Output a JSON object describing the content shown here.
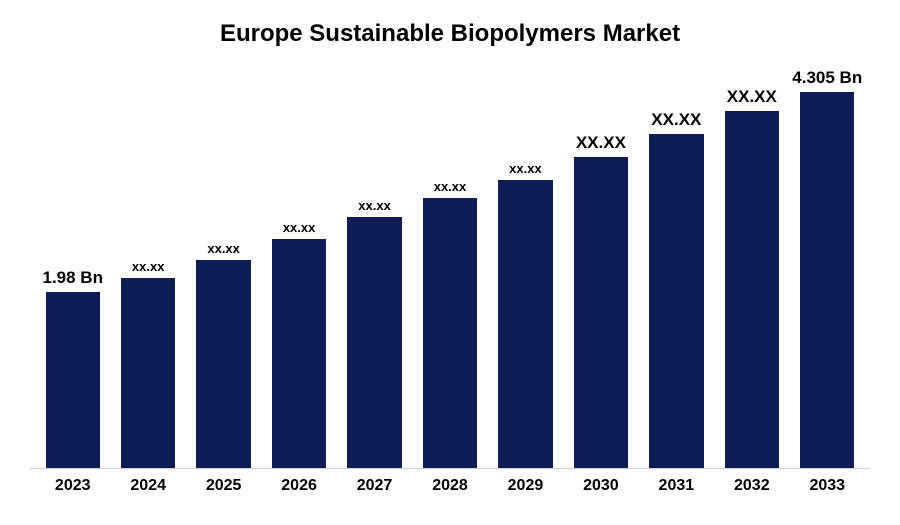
{
  "chart": {
    "type": "bar",
    "title": "Europe Sustainable Biopolymers Market",
    "title_fontsize": 24,
    "title_color": "#000000",
    "background_color": "#ffffff",
    "bar_color": "#0f1d57",
    "axis_color": "#cccccc",
    "label_color": "#000000",
    "label_fontsize_small": 13,
    "label_fontsize_large": 17,
    "xlabel_fontsize": 16,
    "bar_width_pct": 72,
    "max_value": 4.5,
    "categories": [
      "2023",
      "2024",
      "2025",
      "2026",
      "2027",
      "2028",
      "2029",
      "2030",
      "2031",
      "2032",
      "2033"
    ],
    "values": [
      1.98,
      2.14,
      2.34,
      2.58,
      2.82,
      3.04,
      3.24,
      3.5,
      3.76,
      4.02,
      4.305
    ],
    "value_labels": [
      "1.98 Bn",
      "xx.xx",
      "xx.xx",
      "xx.xx",
      "xx.xx",
      "xx.xx",
      "xx.xx",
      "XX.XX",
      "XX.XX",
      "XX.XX",
      "4.305 Bn"
    ],
    "label_is_large": [
      true,
      false,
      false,
      false,
      false,
      false,
      false,
      true,
      true,
      true,
      true
    ]
  }
}
